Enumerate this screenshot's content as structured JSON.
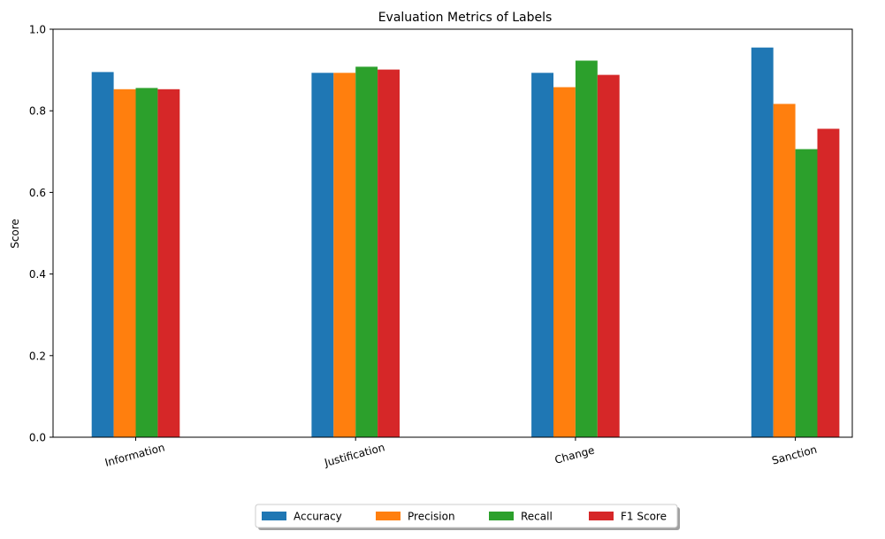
{
  "chart_data": {
    "type": "bar",
    "title": "Evaluation Metrics of Labels",
    "xlabel": "",
    "ylabel": "Score",
    "ylim": [
      0,
      1.0
    ],
    "yticks": [
      "0.0",
      "0.2",
      "0.4",
      "0.6",
      "0.8",
      "1.0"
    ],
    "categories": [
      "Information",
      "Justification",
      "Change",
      "Sanction"
    ],
    "series": [
      {
        "name": "Accuracy",
        "color": "#1f77b4",
        "values": [
          0.895,
          0.893,
          0.893,
          0.955
        ]
      },
      {
        "name": "Precision",
        "color": "#ff7f0e",
        "values": [
          0.853,
          0.893,
          0.858,
          0.817
        ]
      },
      {
        "name": "Recall",
        "color": "#2ca02c",
        "values": [
          0.856,
          0.908,
          0.923,
          0.706
        ]
      },
      {
        "name": "F1 Score",
        "color": "#d62728",
        "values": [
          0.853,
          0.901,
          0.888,
          0.756
        ]
      }
    ],
    "grid": false,
    "legend_position": "bottom-center"
  }
}
